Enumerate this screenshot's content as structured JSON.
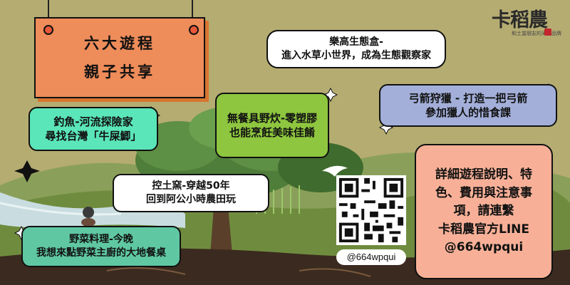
{
  "brand": {
    "name": "卡稻農",
    "tagline": "和土當朋友的米農品牌",
    "seal_color": "#c1272d"
  },
  "title": {
    "line1": "六大遊程",
    "line2": "親子共享"
  },
  "activities": {
    "ecobox": {
      "line1": "樂高生態盒-",
      "line2": "進入水草小世界，成為生態觀察家"
    },
    "archery": {
      "line1": "弓箭狩獵 - 打造一把弓箭",
      "line2": "參加獵人的惜食課"
    },
    "fishing": {
      "line1": "釣魚-河流探險家",
      "line2": "尋找台灣「牛屎鯽」"
    },
    "cooking": {
      "line1": "無餐具野炊-零塑膠",
      "line2": "也能烹飪美味佳餚"
    },
    "kiln": {
      "line1": "控土窯-穿越50年",
      "line2": "回到阿公小時農田玩"
    },
    "veggie": {
      "line1": "野菜料理-今晚",
      "line2": "我想來點野菜主廚的大地餐桌"
    }
  },
  "info": {
    "lines": [
      "詳細遊程說明、特",
      "色、費用與注意事",
      "項，請連繫",
      "卡稻農官方LINE",
      "@664wpqui"
    ]
  },
  "qr": {
    "label": "@664wpqui",
    "icon": "qr-code-icon"
  },
  "colors": {
    "background": "#b5ac72",
    "title_card": "#ee8c5a",
    "archery_card": "#a3afd9",
    "fishing_card": "#5ae6b8",
    "cooking_card": "#8ec63f",
    "veggie_card": "#5fc8a3",
    "info_card": "#f7b097"
  }
}
